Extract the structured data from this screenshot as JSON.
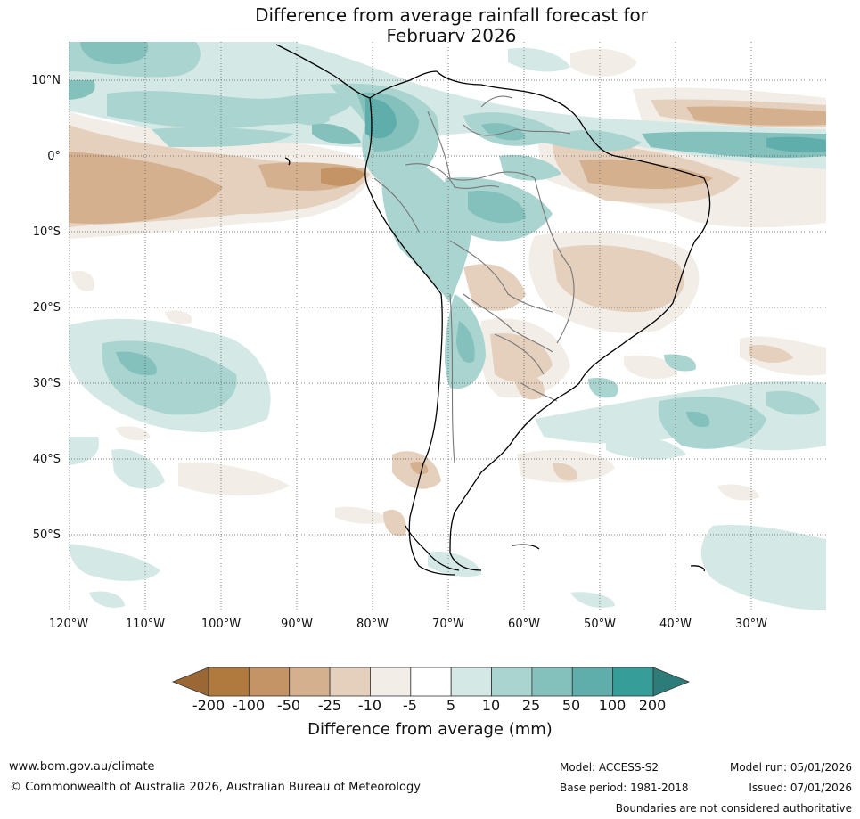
{
  "title": {
    "line1": "Difference from average rainfall forecast for",
    "line2": "February 2026"
  },
  "map": {
    "lat_labels": [
      "10°N",
      "0°",
      "10°S",
      "20°S",
      "30°S",
      "40°S",
      "50°S"
    ],
    "lat_values": [
      10,
      0,
      -10,
      -20,
      -30,
      -40,
      -50
    ],
    "lon_labels": [
      "120°W",
      "110°W",
      "100°W",
      "90°W",
      "80°W",
      "70°W",
      "60°W",
      "50°W",
      "40°W",
      "30°W"
    ],
    "lon_values": [
      -120,
      -110,
      -100,
      -90,
      -80,
      -70,
      -60,
      -50,
      -40,
      -30
    ],
    "extent": {
      "lon_min": -120,
      "lon_max": -20,
      "lat_min": -60,
      "lat_max": 15
    }
  },
  "legend": {
    "ticks": [
      "-200",
      "-100",
      "-50",
      "-25",
      "-10",
      "-5",
      "5",
      "10",
      "25",
      "50",
      "100",
      "200"
    ],
    "colors": [
      "#b07a3e",
      "#c49466",
      "#d4b08e",
      "#e4d0bd",
      "#f2ede6",
      "#ffffff",
      "#d4e9e6",
      "#a9d4d0",
      "#84c1bd",
      "#5faeab",
      "#379d99"
    ],
    "under_color": "#9a6735",
    "over_color": "#2d7c79",
    "label": "Difference from average (mm)"
  },
  "footer": {
    "website": "www.bom.gov.au/climate",
    "copyright": "© Commonwealth of Australia 2026, Australian Bureau of Meteorology",
    "model": "Model: ACCESS-S2",
    "base_period": "Base period: 1981-2018",
    "model_run": "Model run: 05/01/2026",
    "issued": "Issued: 07/01/2026",
    "disclaimer": "Boundaries are not considered authoritative"
  }
}
